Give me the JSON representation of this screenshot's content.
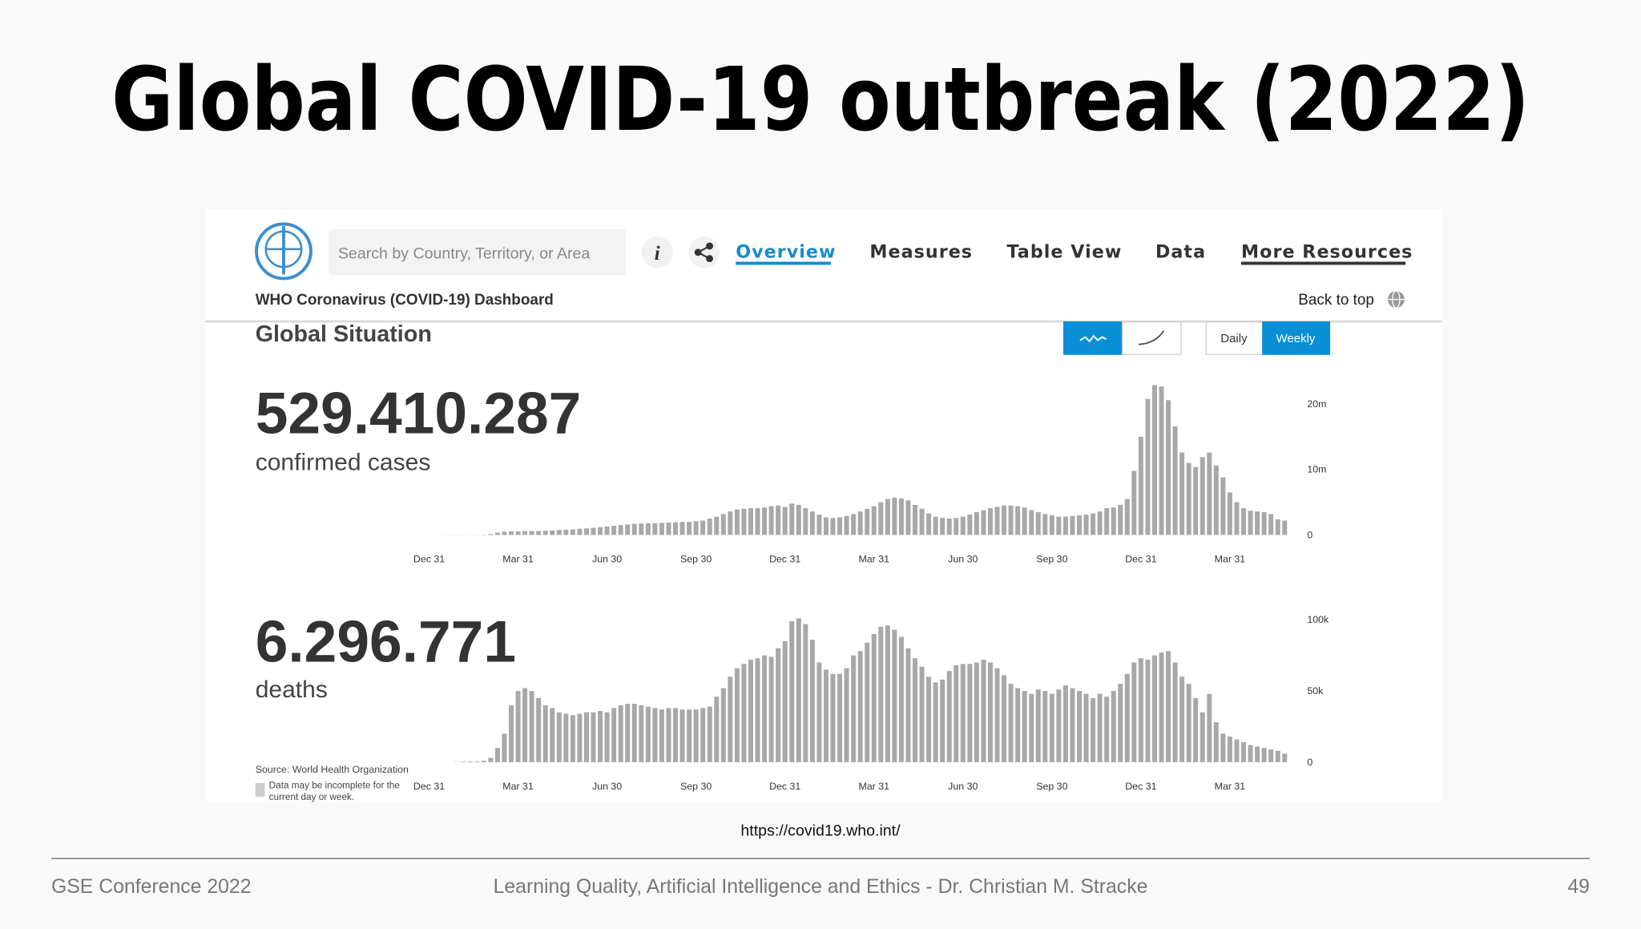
{
  "title": "Global COVID-19 outbreak (2022)",
  "dashboard": {
    "search_placeholder": "Search by Country, Territory, or Area",
    "nav": [
      "Overview",
      "Measures",
      "Table View",
      "Data",
      "More Resources"
    ],
    "subtitle": "WHO Coronavirus (COVID-19) Dashboard",
    "back_to_top": "Back to top",
    "section": "Global Situation",
    "period_buttons": [
      "Daily",
      "Weekly"
    ],
    "cases_total": "529.410.287",
    "cases_label": "confirmed cases",
    "deaths_total": "6.296.771",
    "deaths_label": "deaths",
    "source": "Source: World Health Organization",
    "note": [
      "Data may be incomplete for the",
      "current day or week."
    ]
  },
  "url": "https://covid19.who.int/",
  "footer": {
    "left": "GSE Conference 2022",
    "center": "Learning Quality, Artificial Intelligence and Ethics  -  Dr. Christian M. Stracke",
    "right": "49"
  },
  "chart_data": [
    {
      "type": "bar",
      "color": "#a8a8a8",
      "categories": [
        "Dec 31",
        null,
        null,
        null,
        null,
        null,
        null,
        null,
        null,
        null,
        null,
        null,
        null,
        "Mar 31",
        null,
        null,
        null,
        null,
        null,
        null,
        null,
        null,
        null,
        null,
        null,
        null,
        "Jun 30",
        null,
        null,
        null,
        null,
        null,
        null,
        null,
        null,
        null,
        null,
        null,
        null,
        "Sep 30",
        null,
        null,
        null,
        null,
        null,
        null,
        null,
        null,
        null,
        null,
        null,
        null,
        "Dec 31",
        null,
        null,
        null,
        null,
        null,
        null,
        null,
        null,
        null,
        null,
        null,
        null,
        "Mar 31",
        null,
        null,
        null,
        null,
        null,
        null,
        null,
        null,
        null,
        null,
        null,
        null,
        "Jun 30",
        null,
        null,
        null,
        null,
        null,
        null,
        null,
        null,
        null,
        null,
        null,
        null,
        "Sep 30",
        null,
        null,
        null,
        null,
        null,
        null,
        null,
        null,
        null,
        null,
        null,
        null,
        "Dec 31",
        null,
        null,
        null,
        null,
        null,
        null,
        null,
        null,
        null,
        null,
        null,
        null,
        "Mar 31",
        null,
        null,
        null,
        null,
        null,
        null,
        null,
        null
      ],
      "values": [
        0,
        0,
        10000,
        20000,
        20000,
        20000,
        10000,
        20000,
        50000,
        150000,
        350000,
        500000,
        550000,
        550000,
        600000,
        600000,
        620000,
        650000,
        700000,
        750000,
        800000,
        850000,
        950000,
        1000000,
        1100000,
        1200000,
        1300000,
        1400000,
        1500000,
        1600000,
        1700000,
        1750000,
        1800000,
        1800000,
        1850000,
        1900000,
        1950000,
        2000000,
        2000000,
        2100000,
        2200000,
        2500000,
        2800000,
        3200000,
        3600000,
        3900000,
        4000000,
        4100000,
        4100000,
        4200000,
        4400000,
        4500000,
        4300000,
        4800000,
        4600000,
        4100000,
        3600000,
        3100000,
        2700000,
        2600000,
        2700000,
        2900000,
        3200000,
        3600000,
        4000000,
        4400000,
        5000000,
        5500000,
        5700000,
        5600000,
        5300000,
        4600000,
        4000000,
        3300000,
        2800000,
        2600000,
        2500000,
        2600000,
        2800000,
        3100000,
        3500000,
        3800000,
        4100000,
        4300000,
        4500000,
        4500000,
        4400000,
        4200000,
        3800000,
        3500000,
        3200000,
        3000000,
        2800000,
        2800000,
        2900000,
        3000000,
        3100000,
        3300000,
        3600000,
        4100000,
        4200000,
        4600000,
        5500000,
        9800000,
        15000000,
        20800000,
        22900000,
        22700000,
        20600000,
        16600000,
        12600000,
        11000000,
        10400000,
        11900000,
        12600000,
        10600000,
        8800000,
        6500000,
        5000000,
        4100000,
        3700000,
        3600000,
        3500000,
        3200000,
        2400000,
        2200000
      ],
      "ylim": [
        0,
        24000000
      ],
      "yticks": [
        0,
        {
          "value": 10000000,
          "label": "10m"
        },
        {
          "value": 20000000,
          "label": "20m"
        }
      ]
    },
    {
      "type": "bar",
      "color": "#a8a8a8",
      "categories": [
        "Dec 31",
        null,
        null,
        null,
        null,
        null,
        null,
        null,
        null,
        null,
        null,
        null,
        null,
        "Mar 31",
        null,
        null,
        null,
        null,
        null,
        null,
        null,
        null,
        null,
        null,
        null,
        null,
        "Jun 30",
        null,
        null,
        null,
        null,
        null,
        null,
        null,
        null,
        null,
        null,
        null,
        null,
        "Sep 30",
        null,
        null,
        null,
        null,
        null,
        null,
        null,
        null,
        null,
        null,
        null,
        null,
        "Dec 31",
        null,
        null,
        null,
        null,
        null,
        null,
        null,
        null,
        null,
        null,
        null,
        null,
        "Mar 31",
        null,
        null,
        null,
        null,
        null,
        null,
        null,
        null,
        null,
        null,
        null,
        null,
        "Jun 30",
        null,
        null,
        null,
        null,
        null,
        null,
        null,
        null,
        null,
        null,
        null,
        null,
        "Sep 30",
        null,
        null,
        null,
        null,
        null,
        null,
        null,
        null,
        null,
        null,
        null,
        null,
        "Dec 31",
        null,
        null,
        null,
        null,
        null,
        null,
        null,
        null,
        null,
        null,
        null,
        null,
        "Mar 31",
        null,
        null,
        null,
        null,
        null,
        null,
        null,
        null
      ],
      "values": [
        0,
        0,
        0,
        0,
        200,
        400,
        500,
        500,
        1000,
        3000,
        10000,
        20000,
        40000,
        50000,
        52000,
        50000,
        45000,
        40000,
        38000,
        35000,
        34000,
        33000,
        34000,
        35000,
        35000,
        36000,
        35000,
        38000,
        40000,
        41000,
        41000,
        40000,
        39000,
        38000,
        37000,
        38000,
        38000,
        37000,
        37000,
        37000,
        38000,
        39000,
        46000,
        52000,
        60000,
        66000,
        69000,
        72000,
        73000,
        75000,
        74000,
        80000,
        85000,
        99000,
        101000,
        97000,
        86000,
        70000,
        65000,
        62000,
        62000,
        66000,
        75000,
        78000,
        84000,
        90000,
        95000,
        96000,
        93000,
        88000,
        80000,
        73000,
        67000,
        60000,
        56000,
        58000,
        64000,
        68000,
        69000,
        69000,
        70000,
        72000,
        70000,
        66000,
        61000,
        55000,
        52000,
        50000,
        48000,
        51000,
        50000,
        48000,
        51000,
        54000,
        52000,
        50000,
        48000,
        45000,
        48000,
        46000,
        50000,
        55000,
        62000,
        70000,
        73000,
        72000,
        75000,
        77000,
        78000,
        70000,
        60000,
        55000,
        45000,
        35000,
        48000,
        28000,
        20000,
        18000,
        16000,
        14000,
        12000,
        11000,
        10000,
        9000,
        8000,
        6000
      ],
      "ylim": [
        0,
        110000
      ],
      "yticks": [
        0,
        {
          "value": 50000,
          "label": "50k"
        },
        {
          "value": 100000,
          "label": "100k"
        }
      ]
    }
  ]
}
